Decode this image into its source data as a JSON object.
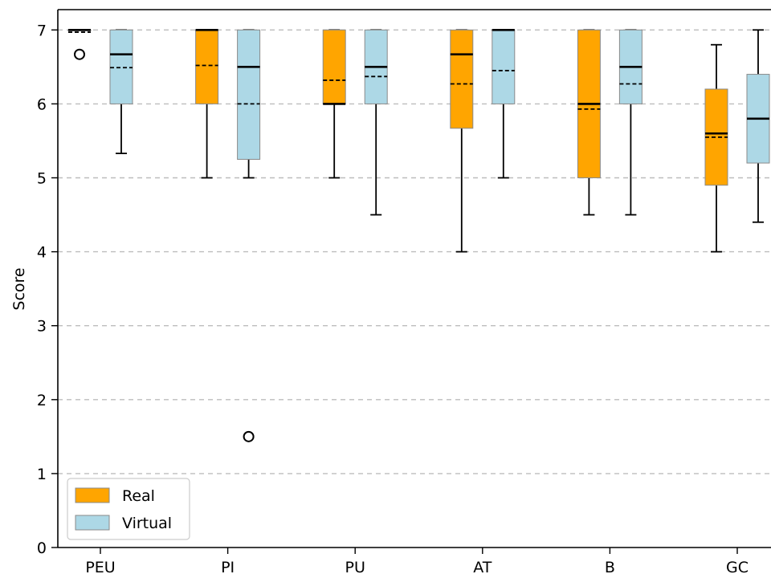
{
  "chart_data": {
    "type": "box",
    "ylabel": "Score",
    "ylim": [
      0,
      7.3
    ],
    "yticks": [
      0,
      1,
      2,
      3,
      4,
      5,
      6,
      7
    ],
    "grid": "horizontal-dashed",
    "legend_position": "bottom-left",
    "categories": [
      "PEU",
      "PI",
      "PU",
      "AT",
      "B",
      "GC"
    ],
    "series": [
      {
        "name": "Real",
        "color": "#FFA500",
        "boxes": [
          {
            "whisker_low": 7.0,
            "q1": 7.0,
            "median": 7.0,
            "mean": 6.97,
            "q3": 7.0,
            "whisker_high": 7.0,
            "outliers": [
              6.67
            ]
          },
          {
            "whisker_low": 5.0,
            "q1": 6.0,
            "median": 7.0,
            "mean": 6.52,
            "q3": 7.0,
            "whisker_high": 7.0,
            "outliers": []
          },
          {
            "whisker_low": 5.0,
            "q1": 6.0,
            "median": 6.0,
            "mean": 6.32,
            "q3": 7.0,
            "whisker_high": 7.0,
            "outliers": []
          },
          {
            "whisker_low": 4.0,
            "q1": 5.67,
            "median": 6.67,
            "mean": 6.27,
            "q3": 7.0,
            "whisker_high": 7.0,
            "outliers": []
          },
          {
            "whisker_low": 4.5,
            "q1": 5.0,
            "median": 6.0,
            "mean": 5.93,
            "q3": 7.0,
            "whisker_high": 7.0,
            "outliers": []
          },
          {
            "whisker_low": 4.0,
            "q1": 4.9,
            "median": 5.6,
            "mean": 5.55,
            "q3": 6.2,
            "whisker_high": 6.8,
            "outliers": []
          }
        ]
      },
      {
        "name": "Virtual",
        "color": "#ADD8E6",
        "boxes": [
          {
            "whisker_low": 5.33,
            "q1": 6.0,
            "median": 6.67,
            "mean": 6.49,
            "q3": 7.0,
            "whisker_high": 7.0,
            "outliers": []
          },
          {
            "whisker_low": 5.0,
            "q1": 5.25,
            "median": 6.5,
            "mean": 6.0,
            "q3": 7.0,
            "whisker_high": 7.0,
            "outliers": [
              1.5
            ]
          },
          {
            "whisker_low": 4.5,
            "q1": 6.0,
            "median": 6.5,
            "mean": 6.37,
            "q3": 7.0,
            "whisker_high": 7.0,
            "outliers": []
          },
          {
            "whisker_low": 5.0,
            "q1": 6.0,
            "median": 7.0,
            "mean": 6.45,
            "q3": 7.0,
            "whisker_high": 7.0,
            "outliers": []
          },
          {
            "whisker_low": 4.5,
            "q1": 6.0,
            "median": 6.5,
            "mean": 6.27,
            "q3": 7.0,
            "whisker_high": 7.0,
            "outliers": []
          },
          {
            "whisker_low": 4.4,
            "q1": 5.2,
            "median": 5.8,
            "mean": 5.8,
            "q3": 6.4,
            "whisker_high": 7.0,
            "outliers": []
          }
        ]
      }
    ]
  }
}
